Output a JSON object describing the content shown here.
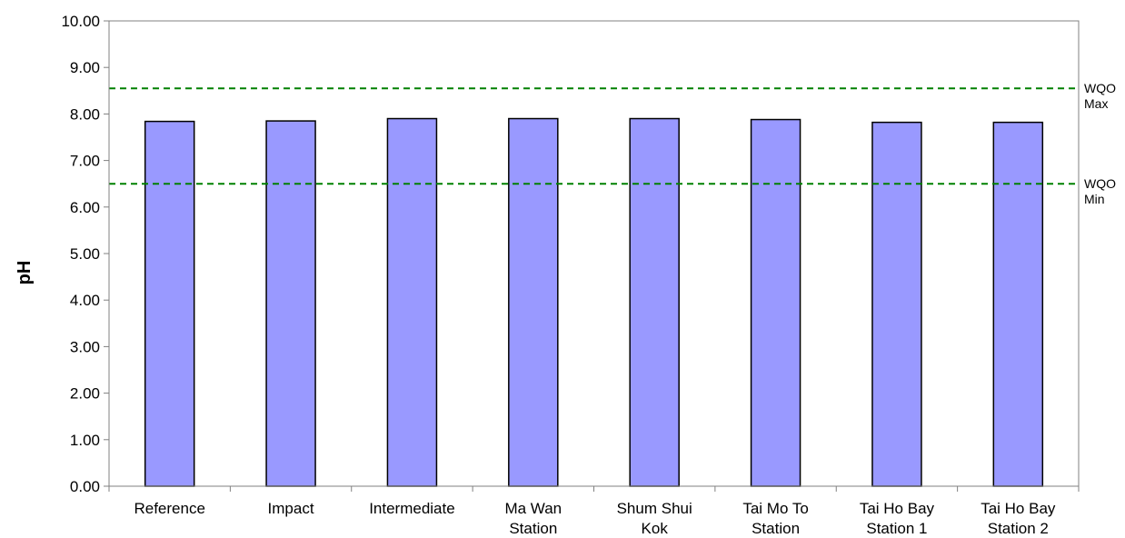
{
  "chart_data": {
    "type": "bar",
    "title": "",
    "xlabel": "",
    "ylabel": "pH",
    "ylim": [
      0,
      10
    ],
    "y_ticks": [
      "0.00",
      "1.00",
      "2.00",
      "3.00",
      "4.00",
      "5.00",
      "6.00",
      "7.00",
      "8.00",
      "9.00",
      "10.00"
    ],
    "categories": [
      [
        "Reference"
      ],
      [
        "Impact"
      ],
      [
        "Intermediate"
      ],
      [
        "Ma Wan",
        "Station"
      ],
      [
        "Shum Shui",
        "Kok"
      ],
      [
        "Tai Mo To",
        "Station"
      ],
      [
        "Tai Ho Bay",
        "Station 1"
      ],
      [
        "Tai Ho Bay",
        "Station 2"
      ]
    ],
    "values": [
      7.84,
      7.85,
      7.9,
      7.9,
      7.9,
      7.88,
      7.82,
      7.82
    ],
    "bar_color": "#9999ff",
    "bar_edge_color": "#000000",
    "grid": false,
    "reference_lines": [
      {
        "value": 8.55,
        "label": [
          "WQO",
          "Max"
        ],
        "color": "#008000"
      },
      {
        "value": 6.5,
        "label": [
          "WQO",
          "Min"
        ],
        "color": "#008000"
      }
    ]
  }
}
